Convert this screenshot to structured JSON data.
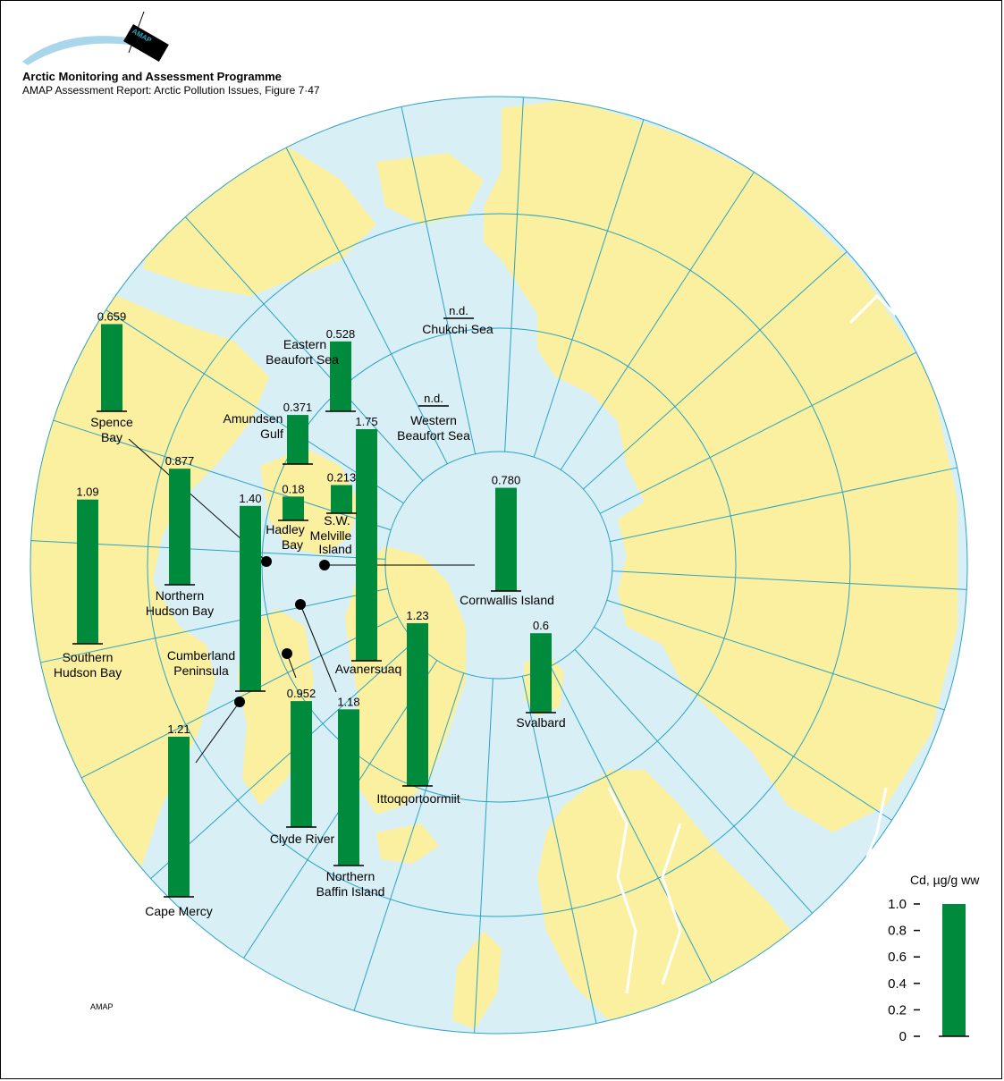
{
  "header": {
    "org": "Arctic Monitoring and Assessment Programme",
    "report": "AMAP Assessment Report: Arctic Pollution Issues, Figure 7·47",
    "logo_text": "AMAP"
  },
  "footer": {
    "credit": "AMAP"
  },
  "colors": {
    "ocean": "#d9eff6",
    "land": "#fbf0a0",
    "grid": "#2aa3c3",
    "bar": "#008a3c",
    "border": "#ffffff"
  },
  "legend": {
    "title": "Cd, µg/g ww",
    "ticks": [
      "1.0",
      "0.8",
      "0.6",
      "0.4",
      "0.2",
      "0"
    ],
    "max": 1.0
  },
  "chart_data": {
    "type": "bar",
    "unit": "Cd, µg/g ww",
    "scale_max": 1.0,
    "sites": [
      {
        "name": "Spence Bay",
        "value": 0.659,
        "label": "0.659"
      },
      {
        "name": "Eastern Beaufort Sea",
        "value": 0.528,
        "label": "0.528"
      },
      {
        "name": "Chukchi Sea",
        "value": null,
        "label": "n.d."
      },
      {
        "name": "Western Beaufort Sea",
        "value": null,
        "label": "n.d."
      },
      {
        "name": "Amundsen Gulf",
        "value": 0.371,
        "label": "0.371"
      },
      {
        "name": "Avanersuaq",
        "value": 1.75,
        "label": "1.75"
      },
      {
        "name": "Northern Hudson Bay",
        "value": 0.877,
        "label": "0.877"
      },
      {
        "name": "S.W. Melville Island",
        "value": 0.213,
        "label": "0.213"
      },
      {
        "name": "Hadley Bay",
        "value": 0.18,
        "label": "0.18"
      },
      {
        "name": "Southern Hudson Bay",
        "value": 1.09,
        "label": "1.09"
      },
      {
        "name": "Cumberland Peninsula",
        "value": 1.4,
        "label": "1.40"
      },
      {
        "name": "Cornwallis Island",
        "value": 0.78,
        "label": "0.780"
      },
      {
        "name": "Svalbard",
        "value": 0.6,
        "label": "0.6"
      },
      {
        "name": "Ittoqqortoormiit",
        "value": 1.23,
        "label": "1.23"
      },
      {
        "name": "Clyde River",
        "value": 0.952,
        "label": "0.952"
      },
      {
        "name": "Northern Baffin Island",
        "value": 1.18,
        "label": "1.18"
      },
      {
        "name": "Cape Mercy",
        "value": 1.21,
        "label": "1.21"
      }
    ]
  }
}
